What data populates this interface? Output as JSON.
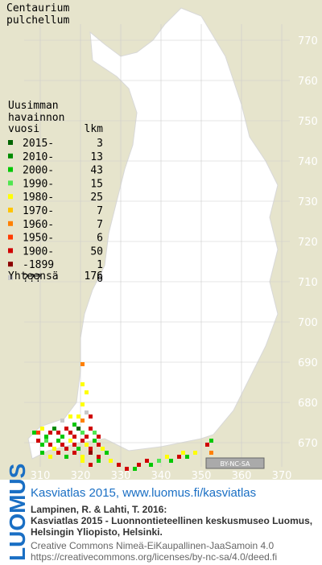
{
  "title_lines": [
    "Centaurium",
    "pulchellum"
  ],
  "legend": {
    "heading_lines": [
      "Uusimman",
      "havainnon"
    ],
    "period_header": "vuosi",
    "count_header": "lkm",
    "items": [
      {
        "period": "2015-",
        "count": 3,
        "color": "#006400"
      },
      {
        "period": "2010-",
        "count": 13,
        "color": "#008c00"
      },
      {
        "period": "2000-",
        "count": 43,
        "color": "#00c800"
      },
      {
        "period": "1990-",
        "count": 15,
        "color": "#50e650"
      },
      {
        "period": "1980-",
        "count": 25,
        "color": "#ffff00"
      },
      {
        "period": "1970-",
        "count": 7,
        "color": "#ffc400"
      },
      {
        "period": "1960-",
        "count": 7,
        "color": "#ff8000"
      },
      {
        "period": "1950-",
        "count": 6,
        "color": "#ff3c00"
      },
      {
        "period": "1900-",
        "count": 50,
        "color": "#d00000"
      },
      {
        "period": "-1899",
        "count": 1,
        "color": "#8c0000"
      },
      {
        "period": "???",
        "count": 6,
        "color": "#c8c8c8"
      }
    ],
    "total_label": "Yhteensä",
    "total": 176
  },
  "xticks": [
    310,
    320,
    330,
    340,
    350,
    360,
    370
  ],
  "yticks": [
    670,
    680,
    690,
    700,
    710,
    720,
    730,
    740,
    750,
    760,
    770
  ],
  "cells": [
    [
      308,
      672,
      2
    ],
    [
      309,
      672,
      7
    ],
    [
      310,
      673,
      4
    ],
    [
      311,
      671,
      2
    ],
    [
      312,
      672,
      8
    ],
    [
      313,
      673,
      1
    ],
    [
      314,
      672,
      8
    ],
    [
      315,
      671,
      2
    ],
    [
      316,
      673,
      8
    ],
    [
      317,
      672,
      8
    ],
    [
      318,
      671,
      8
    ],
    [
      319,
      673,
      0
    ],
    [
      320,
      672,
      3
    ],
    [
      321,
      671,
      8
    ],
    [
      322,
      673,
      8
    ],
    [
      323,
      672,
      3
    ],
    [
      324,
      671,
      8
    ],
    [
      309,
      670,
      8
    ],
    [
      310,
      669,
      2
    ],
    [
      311,
      670,
      3
    ],
    [
      312,
      669,
      8
    ],
    [
      313,
      668,
      4
    ],
    [
      314,
      670,
      2
    ],
    [
      315,
      669,
      8
    ],
    [
      316,
      668,
      8
    ],
    [
      317,
      670,
      4
    ],
    [
      318,
      669,
      8
    ],
    [
      319,
      668,
      2
    ],
    [
      320,
      670,
      8
    ],
    [
      321,
      669,
      4
    ],
    [
      322,
      668,
      8
    ],
    [
      323,
      670,
      2
    ],
    [
      324,
      669,
      8
    ],
    [
      325,
      668,
      4
    ],
    [
      310,
      667,
      2
    ],
    [
      312,
      666,
      4
    ],
    [
      314,
      667,
      8
    ],
    [
      316,
      666,
      2
    ],
    [
      318,
      667,
      8
    ],
    [
      320,
      666,
      4
    ],
    [
      322,
      667,
      9
    ],
    [
      324,
      666,
      8
    ],
    [
      326,
      667,
      2
    ],
    [
      320,
      665,
      4
    ],
    [
      322,
      664,
      8
    ],
    [
      324,
      665,
      2
    ],
    [
      327,
      665,
      4
    ],
    [
      329,
      664,
      8
    ],
    [
      331,
      663,
      8
    ],
    [
      333,
      663,
      2
    ],
    [
      334,
      664,
      8
    ],
    [
      336,
      665,
      8
    ],
    [
      337,
      664,
      2
    ],
    [
      339,
      665,
      3
    ],
    [
      341,
      666,
      4
    ],
    [
      342,
      665,
      2
    ],
    [
      344,
      666,
      8
    ],
    [
      345,
      667,
      4
    ],
    [
      346,
      666,
      2
    ],
    [
      348,
      667,
      4
    ],
    [
      351,
      669,
      8
    ],
    [
      352,
      670,
      2
    ],
    [
      352,
      667,
      6
    ],
    [
      320,
      675,
      6
    ],
    [
      321,
      677,
      10
    ],
    [
      319,
      676,
      4
    ],
    [
      322,
      676,
      8
    ],
    [
      320,
      679,
      4
    ],
    [
      321,
      682,
      4
    ],
    [
      320,
      684,
      4
    ],
    [
      320,
      689,
      6
    ],
    [
      318,
      674,
      2
    ],
    [
      317,
      676,
      4
    ],
    [
      315,
      675,
      10
    ]
  ],
  "license_badge": "BY-NC-SA",
  "footer": {
    "logo": "LUOMUS",
    "link": "Kasviatlas 2015, www.luomus.fi/kasviatlas",
    "citation_lines": [
      "Lampinen, R. & Lahti, T. 2016:",
      "Kasviatlas 2015 - Luonnontieteellinen keskusmuseo Luomus,",
      "Helsingin Yliopisto, Helsinki."
    ],
    "license_lines": [
      "Creative Commons Nimeä-EiKaupallinen-JaaSamoin 4.0",
      "https://creativecommons.org/licenses/by-nc-sa/4.0/deed.fi"
    ]
  }
}
